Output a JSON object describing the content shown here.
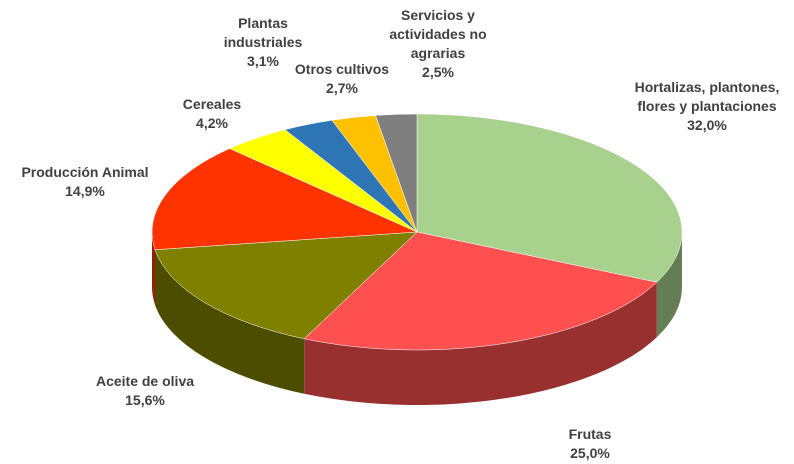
{
  "chart_data": {
    "type": "pie3d",
    "categories": [
      "Hortalizas, plantones, flores y plantaciones",
      "Frutas",
      "Aceite de oliva",
      "Producción Animal",
      "Cereales",
      "Plantas industriales",
      "Otros cultivos",
      "Servicios y actividades no agrarias"
    ],
    "values": [
      32.0,
      25.0,
      15.6,
      14.9,
      4.2,
      3.1,
      2.7,
      2.5
    ],
    "value_labels": [
      "32,0%",
      "25,0%",
      "15,6%",
      "14,9%",
      "4,2%",
      "3,1%",
      "2,7%",
      "2,5%"
    ],
    "colors": [
      "#a9d18e",
      "#ff5050",
      "#808000",
      "#ff3300",
      "#ffff00",
      "#2e75b6",
      "#ffc000",
      "#7f7f7f"
    ]
  }
}
